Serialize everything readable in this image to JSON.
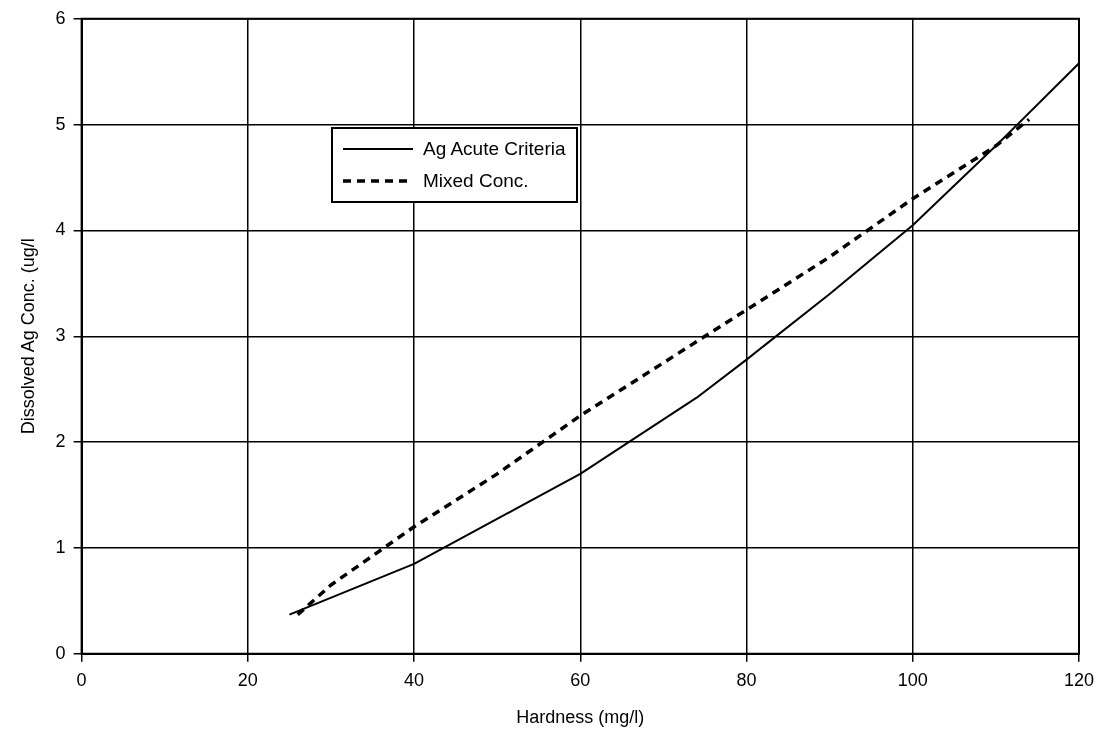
{
  "chart_data": {
    "type": "line",
    "xlabel": "Hardness (mg/l)",
    "ylabel": "Dissolved Ag Conc. (ug/l",
    "xlim": [
      0,
      120
    ],
    "xticks": [
      0,
      20,
      40,
      60,
      80,
      100,
      120
    ],
    "ylim": [
      0,
      6
    ],
    "yticks": [
      0,
      1,
      2,
      3,
      4,
      5,
      6
    ],
    "grid": true,
    "legend": "top left",
    "marker": "none",
    "series": [
      {
        "name": "Ag Acute Criteria",
        "color": "#000000",
        "line_style": "solid",
        "x": [
          25,
          40,
          60,
          74,
          80,
          90,
          100,
          110,
          120
        ],
        "values": [
          0.37,
          0.85,
          1.7,
          2.42,
          2.78,
          3.4,
          4.05,
          4.8,
          5.58
        ]
      },
      {
        "name": "Mixed Conc.",
        "color": "#000000",
        "line_style": "dashed",
        "x": [
          26,
          30,
          40,
          50,
          60,
          70,
          80,
          90,
          100,
          110,
          114
        ],
        "values": [
          0.37,
          0.65,
          1.2,
          1.7,
          2.25,
          2.75,
          3.25,
          3.75,
          4.3,
          4.8,
          5.05
        ]
      }
    ]
  }
}
